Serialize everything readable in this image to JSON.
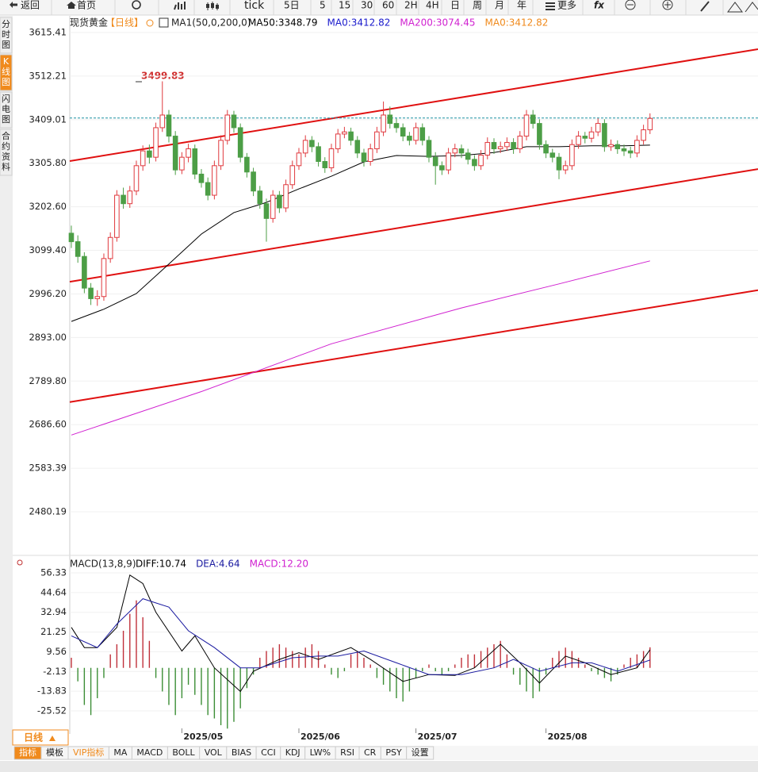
{
  "toolbar": {
    "items": [
      "返回",
      "首页",
      "tick",
      "5日",
      "5",
      "15",
      "30",
      "60",
      "2H",
      "4H",
      "日",
      "周",
      "月",
      "年",
      "更多",
      "fx"
    ]
  },
  "side_tabs": [
    "分时图",
    "K线图",
    "闪电图",
    "合约资料"
  ],
  "chart_data": [
    {
      "type": "candlestick",
      "symbol": "现货黄金",
      "period": "【日线】",
      "indicator": "MA1(50,0,200,0)",
      "legend": [
        {
          "text": "MA50:3348.79",
          "color": "#000000"
        },
        {
          "text": "MA0:3412.82",
          "color": "#1a1acc"
        },
        {
          "text": "MA200:3074.45",
          "color": "#d020d0"
        },
        {
          "text": "MA0:3412.82",
          "color": "#f08a1c"
        }
      ],
      "up_color": "#e0393e",
      "down_color": "#4c9e46",
      "grid": true,
      "xlim": [
        -0.24,
        105.61
      ],
      "ylim": [
        2376.82,
        3654.88
      ],
      "yticks": [
        3615.41,
        3512.21,
        3409.01,
        {
          "value": 3305.8,
          "label": "3305.80"
        },
        {
          "value": 3202.6,
          "label": "3202.60"
        },
        {
          "value": 3099.4,
          "label": "3099.40"
        },
        {
          "value": 2996.2,
          "label": "2996.20"
        },
        {
          "value": 2893,
          "label": "2893.00"
        },
        {
          "value": 2789.8,
          "label": "2789.80"
        },
        {
          "value": 2686.6,
          "label": "2686.60"
        },
        2583.39,
        2480.19
      ],
      "annotation": 3499.83,
      "candles": [
        [
          3140,
          3158,
          3105,
          3120
        ],
        [
          3120,
          3135,
          3070,
          3085
        ],
        [
          3085,
          3095,
          2998,
          3010
        ],
        [
          3010,
          3022,
          2970,
          2985
        ],
        [
          2985,
          3005,
          2968,
          2990
        ],
        [
          2990,
          3092,
          2980,
          3080
        ],
        [
          3080,
          3142,
          3070,
          3130
        ],
        [
          3130,
          3242,
          3120,
          3230
        ],
        [
          3230,
          3248,
          3198,
          3210
        ],
        [
          3210,
          3252,
          3200,
          3240
        ],
        [
          3240,
          3312,
          3230,
          3300
        ],
        [
          3300,
          3348,
          3288,
          3335
        ],
        [
          3335,
          3350,
          3305,
          3320
        ],
        [
          3320,
          3402,
          3310,
          3390
        ],
        [
          3390,
          3499.83,
          3380,
          3420
        ],
        [
          3420,
          3432,
          3355,
          3370
        ],
        [
          3370,
          3382,
          3278,
          3290
        ],
        [
          3290,
          3332,
          3280,
          3320
        ],
        [
          3320,
          3352,
          3308,
          3340
        ],
        [
          3340,
          3350,
          3268,
          3280
        ],
        [
          3280,
          3292,
          3248,
          3260
        ],
        [
          3260,
          3272,
          3218,
          3230
        ],
        [
          3230,
          3312,
          3220,
          3300
        ],
        [
          3300,
          3372,
          3290,
          3360
        ],
        [
          3360,
          3432,
          3350,
          3420
        ],
        [
          3420,
          3430,
          3378,
          3390
        ],
        [
          3390,
          3400,
          3308,
          3320
        ],
        [
          3320,
          3330,
          3272,
          3285
        ],
        [
          3285,
          3295,
          3228,
          3240
        ],
        [
          3240,
          3252,
          3198,
          3210
        ],
        [
          3210,
          3222,
          3120,
          3175
        ],
        [
          3175,
          3242,
          3165,
          3230
        ],
        [
          3230,
          3240,
          3188,
          3200
        ],
        [
          3200,
          3267,
          3190,
          3255
        ],
        [
          3255,
          3312,
          3245,
          3300
        ],
        [
          3300,
          3342,
          3290,
          3330
        ],
        [
          3330,
          3372,
          3320,
          3360
        ],
        [
          3360,
          3370,
          3332,
          3345
        ],
        [
          3345,
          3355,
          3298,
          3310
        ],
        [
          3310,
          3320,
          3283,
          3295
        ],
        [
          3295,
          3352,
          3285,
          3340
        ],
        [
          3340,
          3387,
          3330,
          3375
        ],
        [
          3375,
          3392,
          3365,
          3380
        ],
        [
          3380,
          3390,
          3348,
          3360
        ],
        [
          3360,
          3370,
          3318,
          3330
        ],
        [
          3330,
          3340,
          3298,
          3310
        ],
        [
          3310,
          3352,
          3300,
          3340
        ],
        [
          3340,
          3392,
          3330,
          3380
        ],
        [
          3380,
          3452,
          3370,
          3420
        ],
        [
          3420,
          3440,
          3388,
          3400
        ],
        [
          3400,
          3412,
          3378,
          3390
        ],
        [
          3390,
          3400,
          3358,
          3370
        ],
        [
          3370,
          3380,
          3348,
          3360
        ],
        [
          3360,
          3402,
          3350,
          3390
        ],
        [
          3390,
          3400,
          3348,
          3360
        ],
        [
          3360,
          3370,
          3308,
          3320
        ],
        [
          3320,
          3332,
          3255,
          3300
        ],
        [
          3300,
          3310,
          3278,
          3290
        ],
        [
          3290,
          3342,
          3280,
          3330
        ],
        [
          3330,
          3352,
          3320,
          3340
        ],
        [
          3340,
          3350,
          3318,
          3330
        ],
        [
          3330,
          3340,
          3303,
          3315
        ],
        [
          3315,
          3325,
          3288,
          3300
        ],
        [
          3300,
          3337,
          3290,
          3325
        ],
        [
          3325,
          3367,
          3315,
          3355
        ],
        [
          3355,
          3365,
          3328,
          3340
        ],
        [
          3340,
          3357,
          3330,
          3345
        ],
        [
          3345,
          3367,
          3335,
          3355
        ],
        [
          3355,
          3365,
          3328,
          3340
        ],
        [
          3340,
          3382,
          3330,
          3370
        ],
        [
          3370,
          3432,
          3360,
          3420
        ],
        [
          3420,
          3432,
          3388,
          3400
        ],
        [
          3400,
          3410,
          3338,
          3350
        ],
        [
          3350,
          3360,
          3318,
          3330
        ],
        [
          3330,
          3340,
          3308,
          3320
        ],
        [
          3320,
          3330,
          3268,
          3290
        ],
        [
          3290,
          3312,
          3280,
          3300
        ],
        [
          3300,
          3362,
          3290,
          3350
        ],
        [
          3350,
          3382,
          3340,
          3370
        ],
        [
          3370,
          3380,
          3353,
          3365
        ],
        [
          3365,
          3392,
          3355,
          3380
        ],
        [
          3380,
          3412,
          3370,
          3400
        ],
        [
          3400,
          3410,
          3333,
          3345
        ],
        [
          3345,
          3362,
          3335,
          3350
        ],
        [
          3350,
          3360,
          3328,
          3340
        ],
        [
          3340,
          3350,
          3323,
          3335
        ],
        [
          3335,
          3345,
          3318,
          3330
        ],
        [
          3330,
          3372,
          3320,
          3360
        ],
        [
          3360,
          3397,
          3350,
          3385
        ],
        [
          3385,
          3424,
          3375,
          3412
        ]
      ],
      "series": [
        {
          "name": "MA50",
          "color": "#000000",
          "x": [
            0,
            5,
            10,
            15,
            20,
            25,
            30,
            35,
            40,
            45,
            50,
            55,
            60,
            65,
            70,
            75,
            80,
            85,
            89
          ],
          "values": [
            2931,
            2960,
            2997,
            3067,
            3138,
            3189,
            3213,
            3245,
            3275,
            3309,
            3324,
            3322,
            3324,
            3331,
            3345,
            3345,
            3347,
            3347,
            3348.79
          ]
        },
        {
          "name": "MA200",
          "color": "#d020d0",
          "x": [
            0,
            20,
            40,
            60,
            75,
            89
          ],
          "values": [
            2662,
            2765,
            2878,
            2963,
            3020,
            3074.45
          ]
        }
      ],
      "ma0_line": {
        "value": 3412.82,
        "color": "#1a8fa0"
      },
      "trendlines": {
        "color": "#e01010",
        "lines": [
          {
            "x": [
              -0.24,
              105.61
            ],
            "y": [
              3311,
              3576
            ]
          },
          {
            "x": [
              -0.24,
              105.61
            ],
            "y": [
              3025,
              3292
            ]
          },
          {
            "x": [
              -0.24,
              105.61
            ],
            "y": [
              2740,
              3005
            ]
          }
        ]
      }
    },
    {
      "type": "macd",
      "title": "MACD(13,8,9)",
      "legend": [
        {
          "text": "DIFF:10.74",
          "color": "#000000"
        },
        {
          "text": "DEA:4.64",
          "color": "#1a1aa0"
        },
        {
          "text": "MACD:12.20",
          "color": "#d020d0"
        }
      ],
      "up_color": "#c0303a",
      "down_color": "#3c8e36",
      "xlim": [
        -0.24,
        105.61
      ],
      "ylim": [
        -35.87,
        59.62
      ],
      "yticks": [
        56.33,
        44.64,
        32.94,
        21.25,
        9.56,
        -2.13,
        -13.83,
        -25.52
      ],
      "categories": [
        null,
        null,
        null,
        null,
        null,
        null,
        null,
        null,
        null,
        null,
        null,
        null,
        null,
        null,
        null,
        null,
        null,
        "2025/05",
        null,
        null,
        null,
        null,
        null,
        null,
        null,
        null,
        null,
        null,
        null,
        null,
        null,
        null,
        null,
        null,
        null,
        "2025/06",
        null,
        null,
        null,
        null,
        null,
        null,
        null,
        null,
        null,
        null,
        null,
        null,
        null,
        null,
        null,
        null,
        null,
        "2025/07",
        null,
        null,
        null,
        null,
        null,
        null,
        null,
        null,
        null,
        null,
        null,
        null,
        null,
        null,
        null,
        null,
        null,
        null,
        null,
        "2025/08",
        null,
        null,
        null,
        null,
        null,
        null,
        null,
        null,
        null,
        null,
        null,
        null,
        null,
        null,
        null,
        null
      ],
      "histogram": [
        6,
        -8,
        -22,
        -28,
        -18,
        -6,
        8,
        14,
        22,
        32,
        40,
        30,
        16,
        -6,
        -14,
        -22,
        -28,
        -18,
        -10,
        -16,
        -22,
        -28,
        -30,
        -34,
        -36,
        -32,
        -24,
        -12,
        -4,
        6,
        10,
        12,
        14,
        12,
        10,
        8,
        12,
        14,
        10,
        2,
        -4,
        -6,
        -2,
        8,
        10,
        6,
        2,
        -6,
        -10,
        -14,
        -18,
        -20,
        -14,
        -6,
        -2,
        2,
        -2,
        -4,
        -2,
        2,
        6,
        8,
        8,
        10,
        12,
        14,
        16,
        8,
        -4,
        -10,
        -14,
        -18,
        -14,
        -4,
        6,
        10,
        12,
        10,
        6,
        2,
        -2,
        -4,
        -6,
        -8,
        -4,
        2,
        6,
        8,
        10,
        12.2
      ],
      "series": [
        {
          "name": "DIFF",
          "color": "#000000",
          "x": [
            0,
            2,
            4,
            7,
            9,
            11,
            13,
            17,
            19,
            22,
            26,
            28,
            32,
            35,
            38,
            43,
            46,
            51,
            55,
            59,
            62,
            66,
            69,
            72,
            76,
            79,
            83,
            87,
            89
          ],
          "values": [
            24,
            12,
            12,
            24,
            55,
            50,
            33,
            10,
            19,
            0,
            -14,
            -2,
            5,
            9,
            5,
            12,
            5,
            -8,
            -4,
            -4.5,
            0,
            14,
            3,
            -9,
            7,
            3,
            -4,
            0,
            10.74
          ]
        },
        {
          "name": "DEA",
          "color": "#1a1aa0",
          "x": [
            0,
            4,
            7,
            11,
            15,
            18,
            22,
            26,
            29,
            34,
            38,
            41,
            45,
            50,
            55,
            60,
            65,
            68,
            72,
            77,
            80,
            84,
            89
          ],
          "values": [
            19,
            12,
            26,
            41,
            36,
            22,
            12,
            0,
            0,
            6,
            7,
            7,
            10,
            3,
            -4,
            -4,
            0,
            5,
            -2,
            3,
            3,
            -2,
            4.64
          ]
        }
      ]
    }
  ],
  "bottom_bar": {
    "period_button": "日线",
    "tabs": [
      "指标",
      "模板",
      "VIP指标",
      "MA",
      "MACD",
      "BOLL",
      "VOL",
      "BIAS",
      "CCI",
      "KDJ",
      "LW%",
      "RSI",
      "CR",
      "PSY",
      "设置"
    ]
  }
}
